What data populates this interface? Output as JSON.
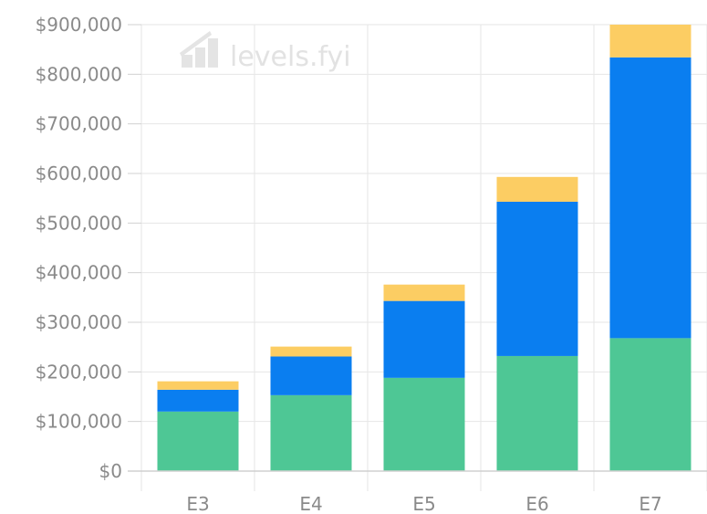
{
  "chart_data": {
    "type": "bar",
    "stacked": true,
    "title": "",
    "xlabel": "",
    "ylabel": "",
    "categories": [
      "E3",
      "E4",
      "E5",
      "E6",
      "E7"
    ],
    "series": [
      {
        "color": "#4ec795",
        "values": [
          120000,
          153000,
          188000,
          232000,
          268000
        ]
      },
      {
        "color": "#0a7ef0",
        "values": [
          44000,
          78000,
          155000,
          311000,
          566000
        ]
      },
      {
        "color": "#fccd63",
        "values": [
          17000,
          20000,
          33000,
          50000,
          66000
        ]
      }
    ],
    "ylim": [
      0,
      900000
    ],
    "yticks": [
      0,
      100000,
      200000,
      300000,
      400000,
      500000,
      600000,
      700000,
      800000,
      900000
    ],
    "ytick_labels": [
      "$0",
      "$100,000",
      "$200,000",
      "$300,000",
      "$400,000",
      "$500,000",
      "$600,000",
      "$700,000",
      "$800,000",
      "$900,000"
    ],
    "grid": true,
    "legend": "none",
    "watermark": {
      "text": "levels.fyi",
      "icon": "bar-chart-logo-icon"
    },
    "colors": {
      "grid": "#e6e6e6",
      "axis": "#d0d0d0",
      "tick_text": "#8a8a8a",
      "watermark": "#e2e2e2"
    }
  }
}
